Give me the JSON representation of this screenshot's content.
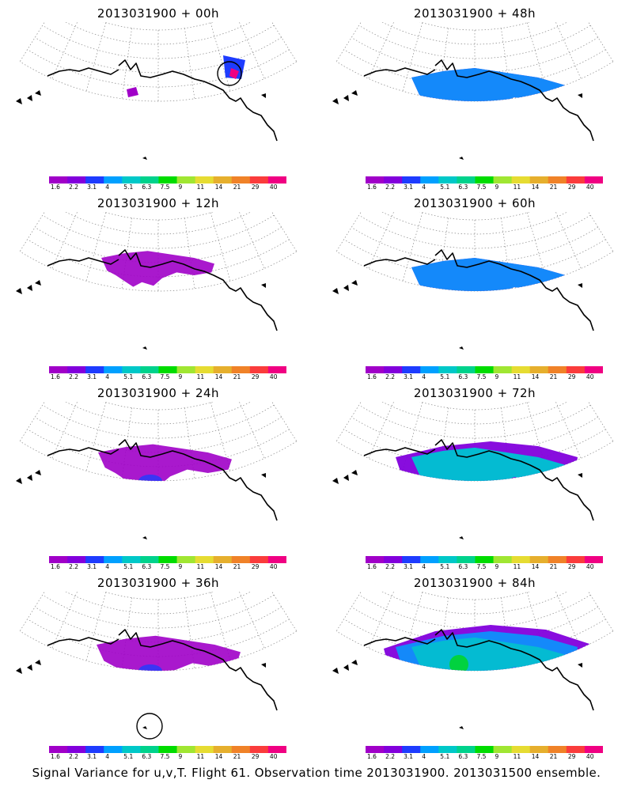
{
  "panels": [
    {
      "title": "2013031900 + 00h",
      "level": 0,
      "marker": "ne"
    },
    {
      "title": "2013031900 + 48h",
      "level": 3
    },
    {
      "title": "2013031900 + 12h",
      "level": 1
    },
    {
      "title": "2013031900 + 60h",
      "level": 4
    },
    {
      "title": "2013031900 + 24h",
      "level": 2
    },
    {
      "title": "2013031900 + 72h",
      "level": 5
    },
    {
      "title": "2013031900 + 36h",
      "level": 2.5,
      "marker": "sw"
    },
    {
      "title": "2013031900 + 84h",
      "level": 6
    }
  ],
  "colorbar": {
    "labels": [
      "1.6",
      "2.2",
      "3.1",
      "4",
      "5.1",
      "6.3",
      "7.5",
      "9",
      "11",
      "14",
      "21",
      "29",
      "40"
    ],
    "colors": [
      "#a000c8",
      "#8200dc",
      "#1e3cff",
      "#00a0ff",
      "#00c8c8",
      "#00d28c",
      "#00dc00",
      "#a0e632",
      "#e6dc32",
      "#e6af2d",
      "#f08228",
      "#fa3c3c",
      "#f00082"
    ]
  },
  "footer": "Signal Variance for u,v,T. Flight 61. Observation time 2013031900. 2013031500 ensemble."
}
